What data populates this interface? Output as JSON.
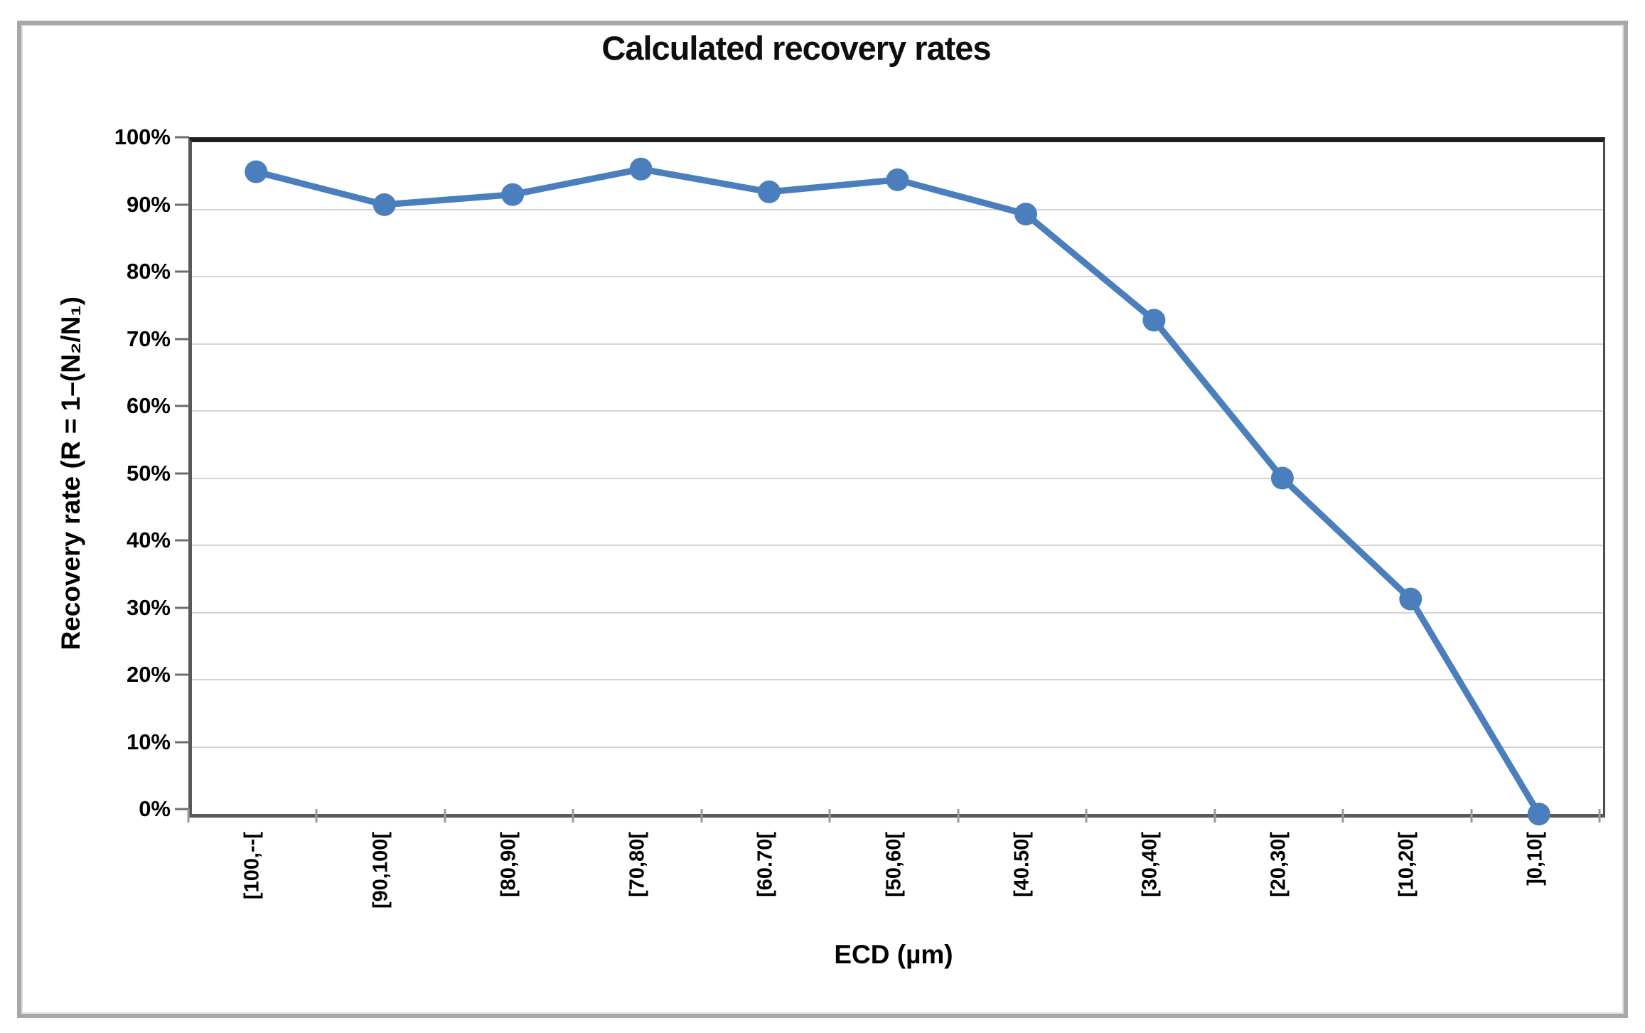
{
  "title": "Calculated recovery rates",
  "chart_data": {
    "type": "line",
    "title": "Calculated recovery rates",
    "xlabel": "ECD (µm)",
    "ylabel": "Recovery rate (R = 1–(N₂/N₁)",
    "categories": [
      "[100,--[",
      "[90,100[",
      "[80,90[",
      "[70,80[",
      "[60.70[",
      "[50,60[",
      "[40.50[",
      "[30,40[",
      "[20,30[",
      "[10,20[",
      "]0,10["
    ],
    "values": [
      95.6,
      90.7,
      92.2,
      96.0,
      92.6,
      94.4,
      89.3,
      73.5,
      50.0,
      32.0,
      0.0
    ],
    "ylim": [
      0,
      100
    ],
    "y_tick_values": [
      100,
      90,
      80,
      70,
      60,
      50,
      40,
      30,
      20,
      10,
      0
    ],
    "y_tick_labels": [
      "100%",
      "90%",
      "80%",
      "70%",
      "60%",
      "50%",
      "40%",
      "30%",
      "20%",
      "10%",
      "0%"
    ],
    "grid": "horizontal",
    "legend_position": "none",
    "line_color": "#4A7EBC",
    "marker": "circle",
    "marker_color": "#4A7EBC"
  }
}
